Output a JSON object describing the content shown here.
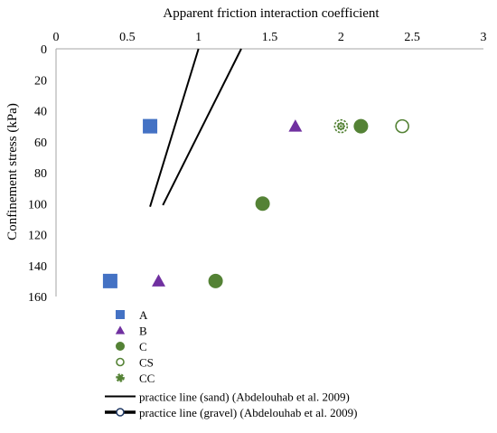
{
  "chart_data": {
    "type": "scatter",
    "xlabel": "Apparent friction interaction coefficient",
    "ylabel": "Confinement stress (kPa)",
    "xlim": [
      0,
      3
    ],
    "ylim": [
      0,
      160
    ],
    "x_axis_position": "top",
    "y_axis_inverted": true,
    "x_ticks": [
      "0",
      "0.5",
      "1",
      "1.5",
      "2",
      "2.5",
      "3"
    ],
    "y_ticks": [
      "0",
      "20",
      "40",
      "60",
      "80",
      "100",
      "120",
      "140",
      "160"
    ],
    "grid": false,
    "legend_position": "bottom",
    "series": [
      {
        "name": "A",
        "marker": "square",
        "color": "#4472C4",
        "points": [
          {
            "x": 0.66,
            "y": 50
          },
          {
            "x": 0.38,
            "y": 150
          }
        ]
      },
      {
        "name": "B",
        "marker": "triangle",
        "color": "#7030A0",
        "points": [
          {
            "x": 1.68,
            "y": 50
          },
          {
            "x": 0.72,
            "y": 150
          }
        ]
      },
      {
        "name": "C",
        "marker": "circle",
        "color": "#548235",
        "points": [
          {
            "x": 2.14,
            "y": 50
          },
          {
            "x": 1.45,
            "y": 100
          },
          {
            "x": 1.12,
            "y": 150
          }
        ]
      },
      {
        "name": "CS",
        "marker": "open-circle",
        "color": "#548235",
        "points": [
          {
            "x": 2.43,
            "y": 50
          }
        ]
      },
      {
        "name": "CC",
        "marker": "dotted-circle",
        "color": "#548235",
        "points": [
          {
            "x": 2.0,
            "y": 50
          }
        ]
      }
    ],
    "lines": [
      {
        "name": "practice line (sand) (Abdelouhab et al. 2009)",
        "color": "#000000",
        "points": [
          {
            "x": 1.0,
            "y": 0
          },
          {
            "x": 0.66,
            "y": 102
          }
        ]
      },
      {
        "name": "practice line (gravel) (Abdelouhab et al. 2009)",
        "color": "#000000",
        "points": [
          {
            "x": 1.3,
            "y": 0
          },
          {
            "x": 0.75,
            "y": 101
          }
        ]
      }
    ]
  }
}
